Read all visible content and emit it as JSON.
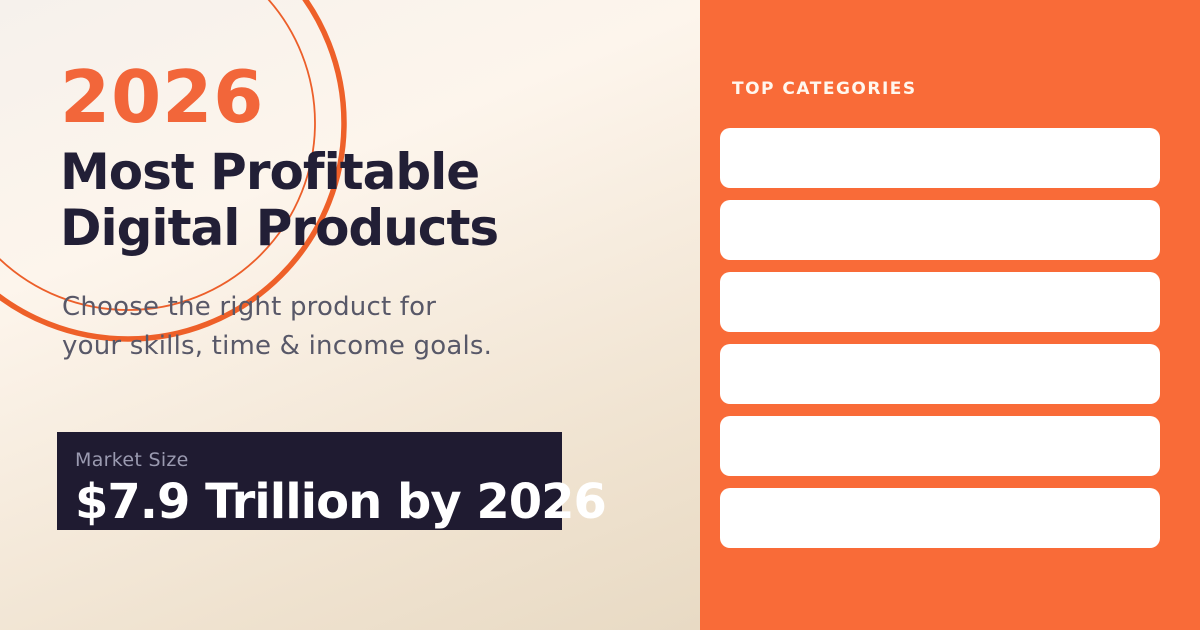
{
  "hero": {
    "year": "2026",
    "title_line1": "Most Profitable",
    "title_line2": "Digital Products",
    "subtitle_line1": "Choose the right product for",
    "subtitle_line2": "your skills, time & income goals."
  },
  "market": {
    "label": "Market Size",
    "value": "$7.9 Trillion by 2026"
  },
  "top_categories": {
    "heading": "TOP CATEGORIES",
    "slots": [
      "",
      "",
      "",
      "",
      "",
      ""
    ]
  },
  "decor": {
    "circle_icon": "concentric-circles-outline",
    "circle_color": "#ec5f2a"
  },
  "colors": {
    "accent_orange_panel": "#f96b38",
    "year_orange": "#f2663a",
    "headline_navy": "#221f36",
    "subtitle_gray": "#585868",
    "market_box_bg": "#1f1b31",
    "market_label_gray": "#9a9ab0",
    "market_value_white": "#ffffff",
    "background_top": "#fdf5ec",
    "background_bottom": "#e8dac4",
    "slot_white": "#ffffff"
  }
}
